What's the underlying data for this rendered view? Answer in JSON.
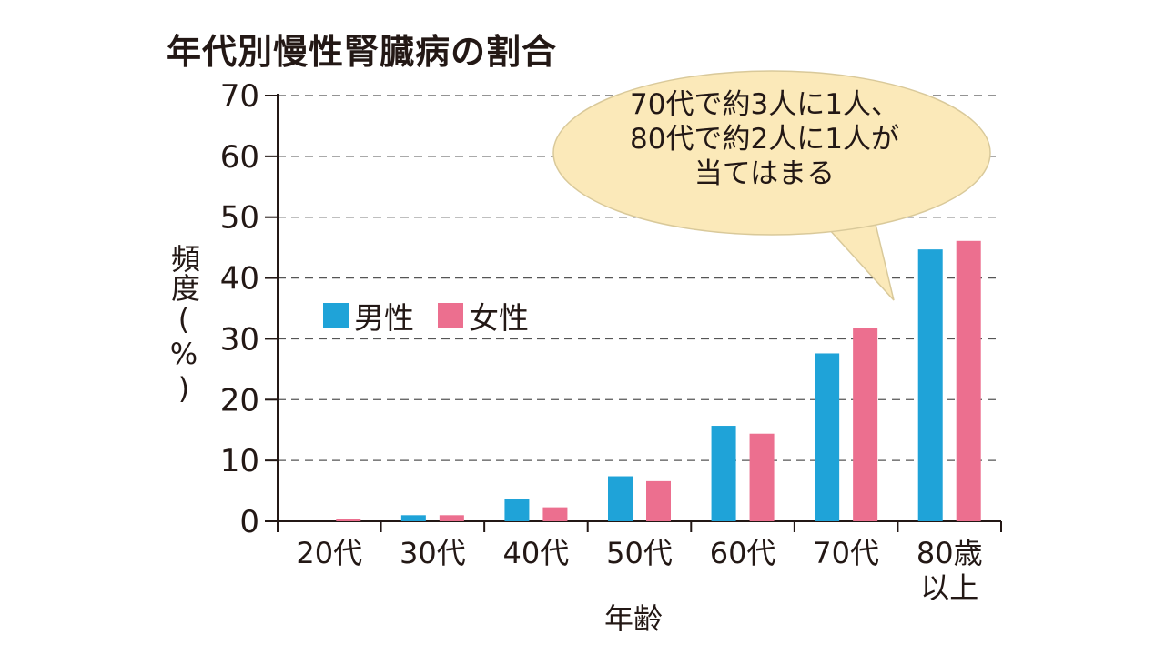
{
  "chart_data": {
    "type": "bar",
    "title": "年代別慢性腎臓病の割合",
    "xlabel": "年齢",
    "ylabel": "頻度(%)",
    "categories": [
      "20代",
      "30代",
      "40代",
      "50代",
      "60代",
      "70代",
      "80歳\n以上"
    ],
    "series": [
      {
        "name": "男性",
        "color": "#1fa3d8",
        "values": [
          0.0,
          1.0,
          3.6,
          7.4,
          15.7,
          27.6,
          44.7
        ]
      },
      {
        "name": "女性",
        "color": "#ec6f8f",
        "values": [
          0.3,
          1.0,
          2.3,
          6.6,
          14.4,
          31.8,
          46.1
        ]
      }
    ],
    "ylim": [
      0,
      70
    ],
    "yticks": [
      0,
      10,
      20,
      30,
      40,
      50,
      60,
      70
    ],
    "grid": true,
    "legend_position": "left-middle",
    "annotation": {
      "lines": [
        "70代で約3人に1人、",
        "80代で約2人に1人が",
        "当てはまる"
      ],
      "fill": "#fbe9b9"
    }
  }
}
